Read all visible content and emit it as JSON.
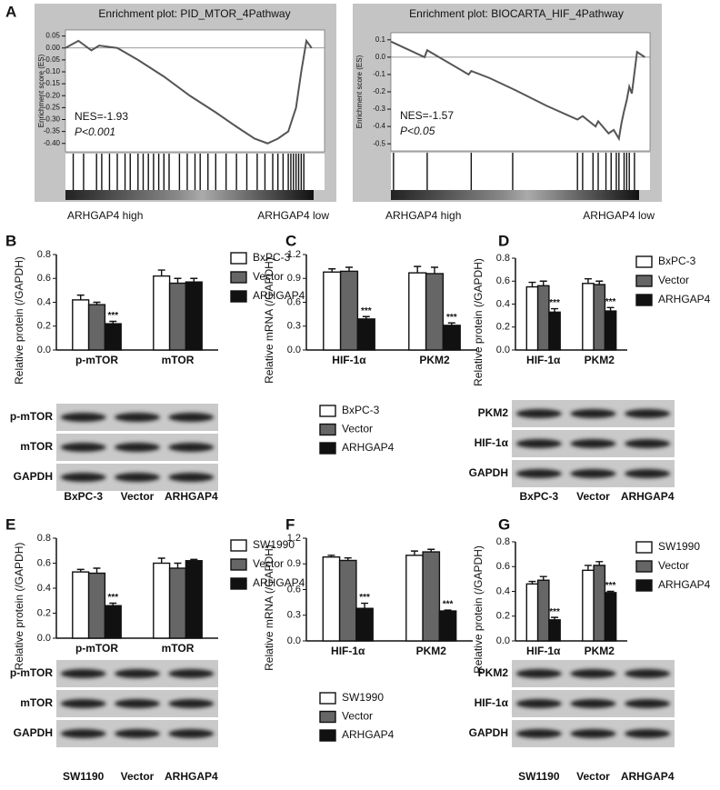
{
  "panel_letters": [
    "A",
    "B",
    "C",
    "D",
    "E",
    "F",
    "G"
  ],
  "chart_data": [
    {
      "type": "line",
      "title": "Enrichment plot: PID_MTOR_4Pathway",
      "ylabel": "Enrichment score (ES)",
      "xlim": [
        0,
        100
      ],
      "ylim": [
        -0.42,
        0.06
      ],
      "yticks": [
        0.05,
        {
          "value": 0,
          "label": "0.00"
        },
        -0.05,
        {
          "value": -0.1,
          "label": "-0.10"
        },
        -0.15,
        {
          "value": -0.2,
          "label": "-0.20"
        },
        -0.25,
        {
          "value": -0.3,
          "label": "-0.30"
        },
        -0.35,
        {
          "value": -0.4,
          "label": "-0.40"
        }
      ],
      "x": [
        0,
        5,
        10,
        13,
        20,
        28,
        38,
        48,
        58,
        66,
        73,
        78,
        82,
        86,
        89,
        91,
        93,
        95
      ],
      "values": [
        0,
        0.03,
        -0.01,
        0.01,
        0,
        -0.05,
        -0.12,
        -0.2,
        -0.27,
        -0.33,
        -0.38,
        -0.4,
        -0.38,
        -0.35,
        -0.25,
        -0.1,
        0.03,
        0
      ],
      "hits": [
        3,
        7,
        12,
        14,
        17,
        20,
        23,
        25,
        28,
        30,
        32,
        34,
        36,
        38,
        40,
        44,
        47,
        50,
        52,
        55,
        58,
        62,
        66,
        70,
        74,
        77,
        80,
        82,
        84,
        86,
        87,
        88,
        89,
        90,
        91,
        92
      ],
      "nes": "NES=-1.93",
      "p": "P<0.001",
      "xlabels": [
        "ARHGAP4 high",
        "ARHGAP4 low"
      ]
    },
    {
      "type": "line",
      "title": "Enrichment plot: BIOCARTA_HIF_4Pathway",
      "ylabel": "Enrichment score (ES)",
      "xlim": [
        0,
        100
      ],
      "ylim": [
        -0.52,
        0.12
      ],
      "yticks": [
        0.1,
        {
          "value": 0,
          "label": "0.0"
        },
        -0.1,
        -0.2,
        -0.3,
        -0.4,
        -0.5
      ],
      "x": [
        0,
        13,
        14,
        30,
        31,
        38,
        48,
        60,
        72,
        74,
        79,
        80,
        84,
        86,
        88,
        89,
        90,
        91,
        92,
        93,
        95,
        98
      ],
      "values": [
        0.09,
        0,
        0.04,
        -0.1,
        -0.08,
        -0.12,
        -0.19,
        -0.28,
        -0.36,
        -0.34,
        -0.4,
        -0.37,
        -0.44,
        -0.42,
        -0.47,
        -0.38,
        -0.31,
        -0.25,
        -0.17,
        -0.21,
        0.03,
        0
      ],
      "hits": [
        1,
        14,
        31,
        47,
        72,
        74,
        78,
        80,
        83,
        85,
        87,
        88,
        90,
        91,
        92,
        94
      ],
      "nes": "NES=-1.57",
      "p": "P<0.05",
      "xlabels": [
        "ARHGAP4 high",
        "ARHGAP4 low"
      ]
    },
    {
      "type": "bar",
      "ylabel": "Relative protein (/GAPDH)",
      "categories": [
        "p-mTOR",
        "mTOR"
      ],
      "ylim": [
        0,
        0.8
      ],
      "yticks": [
        {
          "value": 0,
          "label": "0.0"
        },
        0.2,
        0.4,
        0.6,
        0.8
      ],
      "legend": "right",
      "series": [
        {
          "name": "BxPC-3",
          "color": "#ffffff",
          "values": [
            0.42,
            0.62
          ],
          "errors": [
            0.04,
            0.05
          ]
        },
        {
          "name": "Vector",
          "color": "#666666",
          "values": [
            0.38,
            0.56
          ],
          "errors": [
            0.02,
            0.04
          ]
        },
        {
          "name": "ARHGAP4",
          "color": "#111111",
          "values": [
            0.22,
            0.57
          ],
          "errors": [
            0.02,
            0.03
          ],
          "significance": [
            "***",
            null
          ]
        }
      ]
    },
    {
      "type": "bar",
      "ylabel": "Relative mRNA (/GAPDH)",
      "categories": [
        "HIF-1α",
        "PKM2"
      ],
      "ylim": [
        0,
        1.2
      ],
      "yticks": [
        {
          "value": 0,
          "label": "0.0"
        },
        0.3,
        0.6,
        0.9,
        1.2
      ],
      "legend": "below",
      "series": [
        {
          "name": "BxPC-3",
          "color": "#ffffff",
          "values": [
            0.98,
            0.97
          ],
          "errors": [
            0.04,
            0.08
          ]
        },
        {
          "name": "Vector",
          "color": "#666666",
          "values": [
            0.99,
            0.96
          ],
          "errors": [
            0.05,
            0.08
          ]
        },
        {
          "name": "ARHGAP4",
          "color": "#111111",
          "values": [
            0.39,
            0.31
          ],
          "errors": [
            0.03,
            0.03
          ],
          "significance": [
            "***",
            "***"
          ]
        }
      ]
    },
    {
      "type": "bar",
      "ylabel": "Relative protein (/GAPDH)",
      "categories": [
        "HIF-1α",
        "PKM2"
      ],
      "ylim": [
        0,
        0.8
      ],
      "yticks": [
        {
          "value": 0,
          "label": "0.0"
        },
        0.2,
        0.4,
        0.6,
        0.8
      ],
      "legend": "right",
      "series": [
        {
          "name": "BxPC-3",
          "color": "#ffffff",
          "values": [
            0.55,
            0.58
          ],
          "errors": [
            0.04,
            0.04
          ]
        },
        {
          "name": "Vector",
          "color": "#666666",
          "values": [
            0.56,
            0.57
          ],
          "errors": [
            0.04,
            0.03
          ]
        },
        {
          "name": "ARHGAP4",
          "color": "#111111",
          "values": [
            0.33,
            0.34
          ],
          "errors": [
            0.03,
            0.03
          ],
          "significance": [
            "***",
            "***"
          ]
        }
      ]
    },
    {
      "type": "bar",
      "ylabel": "Relative protein (/GAPDH)",
      "categories": [
        "p-mTOR",
        "mTOR"
      ],
      "ylim": [
        0,
        0.8
      ],
      "yticks": [
        {
          "value": 0,
          "label": "0.0"
        },
        0.2,
        0.4,
        0.6,
        0.8
      ],
      "legend": "right",
      "series": [
        {
          "name": "SW1990",
          "color": "#ffffff",
          "values": [
            0.53,
            0.6
          ],
          "errors": [
            0.02,
            0.04
          ]
        },
        {
          "name": "Vector",
          "color": "#666666",
          "values": [
            0.52,
            0.56
          ],
          "errors": [
            0.04,
            0.04
          ]
        },
        {
          "name": "ARHGAP4",
          "color": "#111111",
          "values": [
            0.26,
            0.62
          ],
          "errors": [
            0.02,
            0.01
          ],
          "significance": [
            "***",
            null
          ]
        }
      ]
    },
    {
      "type": "bar",
      "ylabel": "Relative mRNA (/GAPDH)",
      "categories": [
        "HIF-1α",
        "PKM2"
      ],
      "ylim": [
        0,
        1.2
      ],
      "yticks": [
        {
          "value": 0,
          "label": "0.0"
        },
        0.3,
        0.6,
        0.9,
        1.2
      ],
      "legend": "below",
      "series": [
        {
          "name": "SW1990",
          "color": "#ffffff",
          "values": [
            0.98,
            1.0
          ],
          "errors": [
            0.02,
            0.05
          ]
        },
        {
          "name": "Vector",
          "color": "#666666",
          "values": [
            0.94,
            1.04
          ],
          "errors": [
            0.03,
            0.03
          ]
        },
        {
          "name": "ARHGAP4",
          "color": "#111111",
          "values": [
            0.38,
            0.35
          ],
          "errors": [
            0.06,
            0.01
          ],
          "significance": [
            "***",
            "***"
          ]
        }
      ]
    },
    {
      "type": "bar",
      "ylabel": "Relative protein (/GAPDH)",
      "categories": [
        "HIF-1α",
        "PKM2"
      ],
      "ylim": [
        0,
        0.8
      ],
      "yticks": [
        {
          "value": 0,
          "label": "0.0"
        },
        0.2,
        0.4,
        0.6,
        0.8
      ],
      "legend": "right",
      "series": [
        {
          "name": "SW1990",
          "color": "#ffffff",
          "values": [
            0.46,
            0.57
          ],
          "errors": [
            0.02,
            0.04
          ]
        },
        {
          "name": "Vector",
          "color": "#666666",
          "values": [
            0.49,
            0.61
          ],
          "errors": [
            0.03,
            0.03
          ]
        },
        {
          "name": "ARHGAP4",
          "color": "#111111",
          "values": [
            0.17,
            0.39
          ],
          "errors": [
            0.02,
            0.01
          ],
          "significance": [
            "***",
            "***"
          ]
        }
      ]
    }
  ],
  "blots": [
    {
      "rows": [
        "p-mTOR",
        "mTOR",
        "GAPDH"
      ],
      "lanes": [
        "BxPC-3",
        "Vector",
        "ARHGAP4"
      ]
    },
    {
      "rows": [
        "PKM2",
        "HIF-1α",
        "GAPDH"
      ],
      "lanes": [
        "BxPC-3",
        "Vector",
        "ARHGAP4"
      ]
    },
    {
      "rows": [
        "p-mTOR",
        "mTOR",
        "GAPDH"
      ],
      "lanes": [
        "SW1190",
        "Vector",
        "ARHGAP4"
      ]
    },
    {
      "rows": [
        "PKM2",
        "HIF-1α",
        "GAPDH"
      ],
      "lanes": [
        "SW1190",
        "Vector",
        "ARHGAP4"
      ]
    }
  ]
}
